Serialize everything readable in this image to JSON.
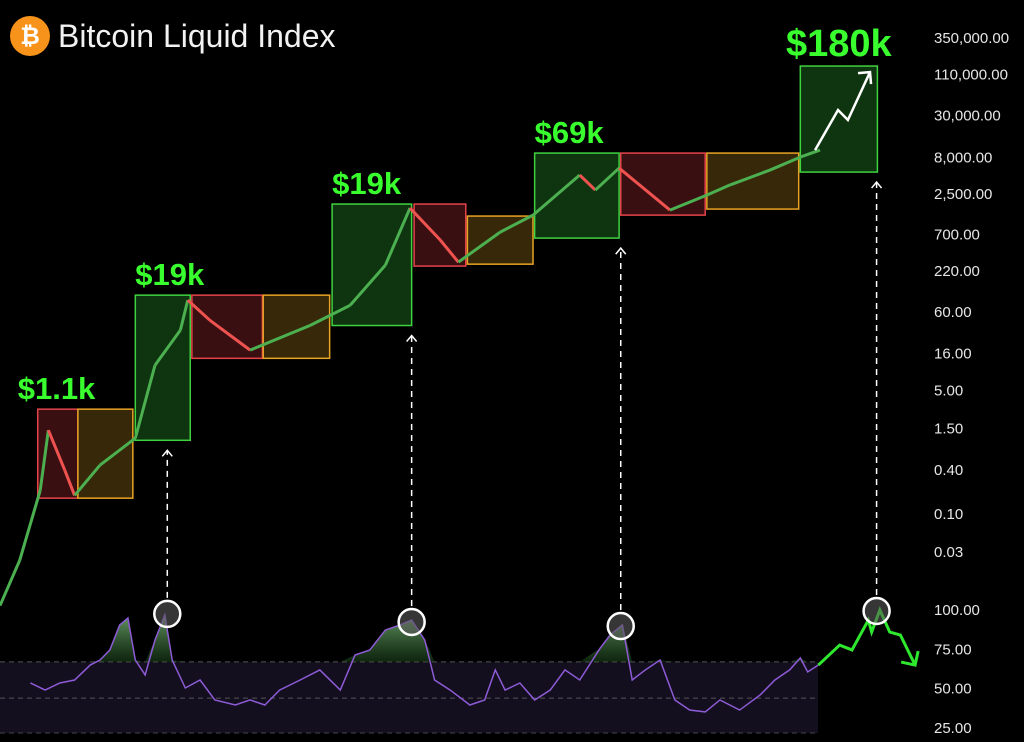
{
  "title": "Bitcoin Liquid Index",
  "logo_icon": "bitcoin-icon",
  "chart_data": [
    {
      "type": "line",
      "panel": "price",
      "title": "Bitcoin Liquid Index",
      "y_scale": "log",
      "ylim": [
        0.03,
        350000
      ],
      "y_ticks": [
        "350,000.00",
        "110,000.00",
        "30,000.00",
        "8,000.00",
        "2,500.00",
        "700.00",
        "220.00",
        "60.00",
        "16.00",
        "5.00",
        "1.50",
        "0.40",
        "0.10",
        "0.03"
      ],
      "y_tick_values": [
        350000,
        110000,
        30000,
        8000,
        2500,
        700,
        220,
        60,
        16,
        5,
        1.5,
        0.4,
        0.1,
        0.03
      ],
      "grid": false,
      "series": [
        {
          "t": [
            0,
            2.4,
            4.9,
            5.9,
            7.9,
            9.1,
            12.2,
            16.5,
            18.9,
            22,
            22.9,
            25.6,
            30.5,
            37.8,
            42.7,
            47,
            50,
            53.7,
            55.9,
            61,
            65,
            70.7,
            72.6,
            75.5,
            81.7,
            86.2,
            89,
            93.9,
            97.6,
            100
          ],
          "values": [
            0.0055,
            0.023,
            0.21,
            1.42,
            0.4,
            0.18,
            0.47,
            1.1,
            11.1,
            33.7,
            87,
            46,
            17.9,
            39,
            74,
            264,
            1607,
            582,
            290,
            750,
            1285,
            4570,
            2840,
            5700,
            1507,
            2420,
            3330,
            5350,
            8070,
            10070
          ]
        }
      ],
      "projection": {
        "t": [
          99.4,
          102.2,
          103.4,
          106.1
        ],
        "values": [
          10070,
          35800,
          26100,
          119000
        ],
        "color": "#ffffff"
      },
      "boxes": [
        {
          "kind": "red",
          "t": [
            4.6,
            9.5
          ],
          "price": [
            0.165,
            2.76
          ],
          "label": "$1.1k"
        },
        {
          "kind": "orange",
          "t": [
            9.5,
            16.2
          ],
          "price": [
            0.165,
            2.76
          ]
        },
        {
          "kind": "green",
          "t": [
            16.5,
            23.2
          ],
          "price": [
            1.03,
            102
          ],
          "label": "$19k"
        },
        {
          "kind": "red",
          "t": [
            23.4,
            32
          ],
          "price": [
            13.8,
            102
          ]
        },
        {
          "kind": "orange",
          "t": [
            32.1,
            40.2
          ],
          "price": [
            13.8,
            102
          ]
        },
        {
          "kind": "green",
          "t": [
            40.5,
            50.2
          ],
          "price": [
            39,
            1824
          ],
          "label": "$19k"
        },
        {
          "kind": "red",
          "t": [
            50.5,
            56.8
          ],
          "price": [
            256,
            1824
          ]
        },
        {
          "kind": "orange",
          "t": [
            57,
            65
          ],
          "price": [
            272,
            1247
          ]
        },
        {
          "kind": "green",
          "t": [
            65.2,
            75.5
          ],
          "price": [
            621,
            9160
          ],
          "label": "$69k"
        },
        {
          "kind": "red",
          "t": [
            75.7,
            86
          ],
          "price": [
            1285,
            9160
          ]
        },
        {
          "kind": "orange",
          "t": [
            86.2,
            97.4
          ],
          "price": [
            1556,
            9160
          ]
        },
        {
          "kind": "green",
          "t": [
            97.6,
            107
          ],
          "price": [
            5020,
            144000
          ],
          "label": "$180k"
        }
      ],
      "colors": {
        "green": {
          "fill": "#0e3510",
          "stroke": "#3fd23f"
        },
        "red": {
          "fill": "#3a0f12",
          "stroke": "#e4444a"
        },
        "orange": {
          "fill": "#362808",
          "stroke": "#e8a324"
        },
        "label": "#39ff2e",
        "up": "#4caf50",
        "down": "#ef5350"
      }
    },
    {
      "type": "line",
      "panel": "oscillator",
      "ylim": [
        25,
        100
      ],
      "y_ticks": [
        "100.00",
        "75.00",
        "50.00",
        "25.00"
      ],
      "y_tick_values": [
        100,
        75,
        50,
        25
      ],
      "band": [
        44,
        67
      ],
      "series": [
        {
          "color": "#8e5bd6",
          "t": [
            3.7,
            5.5,
            7.3,
            9.1,
            11,
            12.2,
            13.4,
            14.6,
            15.6,
            16.5,
            17.7,
            18.9,
            20.1,
            21,
            22.6,
            24.4,
            26.2,
            28.7,
            30.5,
            32.3,
            34.1,
            36.6,
            39,
            41.5,
            43.3,
            45.1,
            47,
            48.8,
            50.2,
            51.8,
            53,
            54.9,
            57.3,
            59.1,
            60.4,
            61.6,
            63.4,
            65.2,
            67.1,
            68.9,
            70.7,
            73.2,
            74.4,
            75.9,
            77.1,
            78.7,
            80.5,
            82.3,
            84.1,
            86,
            87.8,
            90.2,
            92.7,
            94.5,
            96.3,
            97.6,
            98.5,
            99.8
          ],
          "values": [
            53.6,
            49.1,
            53.6,
            55.5,
            65,
            68.2,
            74.6,
            90.5,
            94.9,
            68.2,
            58.7,
            80.9,
            96.8,
            68.2,
            50.4,
            55.5,
            42.8,
            39.6,
            42.8,
            39.6,
            49.1,
            55.5,
            61.9,
            49.1,
            71.4,
            74.6,
            87.3,
            90.5,
            93.6,
            80.9,
            55.5,
            49.1,
            39.6,
            42.8,
            61.9,
            49.1,
            53.6,
            42.8,
            49.1,
            61.9,
            55.5,
            75.8,
            84.1,
            90.5,
            55.5,
            61.9,
            68.2,
            42.8,
            36.4,
            35.2,
            42.8,
            36.4,
            46,
            55.5,
            61.9,
            69.5,
            60.6,
            65
          ]
        }
      ],
      "projection": {
        "t": [
          99.8,
          102.4,
          103.9,
          105.9,
          106.3,
          107.3,
          108.5,
          109.8,
          111.6
        ],
        "values": [
          65,
          77.7,
          74.6,
          93.6,
          86,
          100,
          86,
          84.1,
          65
        ],
        "color": "#2ee82e"
      },
      "peaks": [
        {
          "t": 20.4,
          "value": 97.5
        },
        {
          "t": 50.2,
          "value": 92.4
        },
        {
          "t": 75.7,
          "value": 89.8
        },
        {
          "t": 106.9,
          "value": 99.4
        }
      ]
    }
  ]
}
